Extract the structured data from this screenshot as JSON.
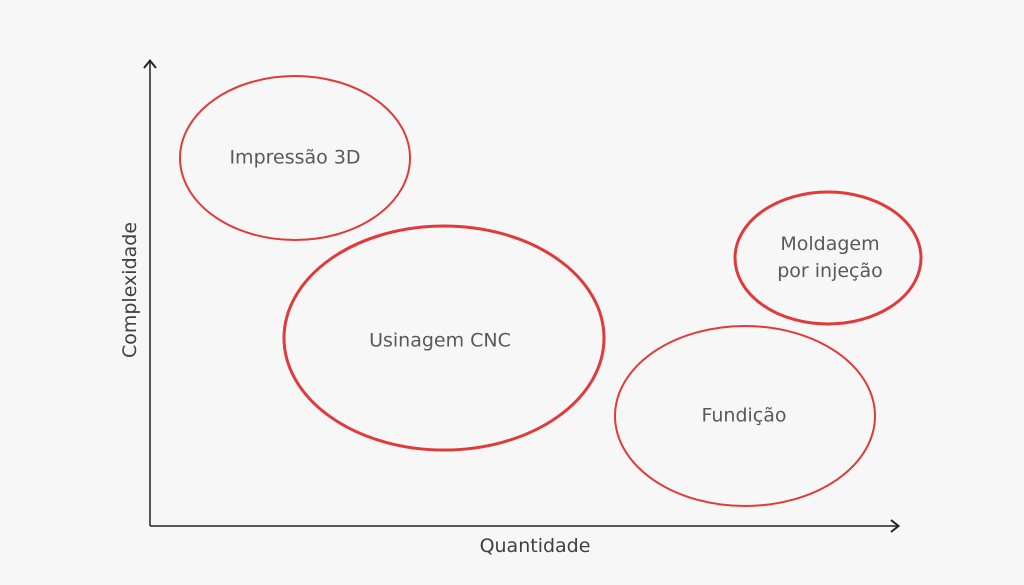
{
  "axes": {
    "y_label": "Complexidade",
    "x_label": "Quantidade"
  },
  "nodes": [
    {
      "label": "Impressão 3D"
    },
    {
      "label": "Usinagem CNC"
    },
    {
      "label": "Moldagem por injeção"
    },
    {
      "label": "Fundição"
    }
  ]
}
